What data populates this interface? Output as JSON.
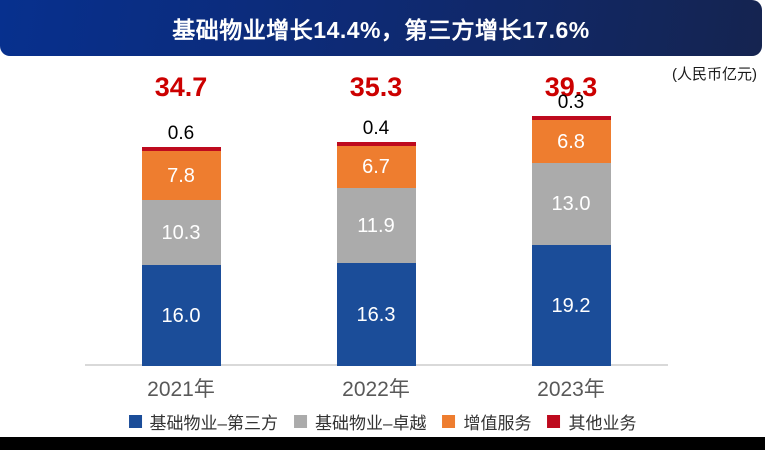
{
  "header": {
    "title": "基础物业增长14.4%，第三方增长17.6%",
    "gradient_left": "#07308E",
    "gradient_right": "#152450"
  },
  "chart_data": {
    "type": "bar",
    "stacked": true,
    "title": "基础物业增长14.4%，第三方增长17.6%",
    "unit_note": "(人民币亿元)",
    "categories": [
      "2021年",
      "2022年",
      "2023年"
    ],
    "series": [
      {
        "name": "基础物业–第三方",
        "color": "#1B4D99",
        "values": [
          16.0,
          16.3,
          19.2
        ],
        "labels": [
          "16.0",
          "16.3",
          "19.2"
        ],
        "label_placement": "inside"
      },
      {
        "name": "基础物业–卓越",
        "color": "#ABABAB",
        "values": [
          10.3,
          11.9,
          13.0
        ],
        "labels": [
          "10.3",
          "11.9",
          "13.0"
        ],
        "label_placement": "inside"
      },
      {
        "name": "增值服务",
        "color": "#EE7D2F",
        "values": [
          7.8,
          6.7,
          6.8
        ],
        "labels": [
          "7.8",
          "6.7",
          "6.8"
        ],
        "label_placement": "inside"
      },
      {
        "name": "其他业务",
        "color": "#BE0A1E",
        "values": [
          0.6,
          0.4,
          0.3
        ],
        "labels": [
          "0.6",
          "0.4",
          "0.3"
        ],
        "label_placement": "above"
      }
    ],
    "totals": {
      "labels": [
        "34.7",
        "35.3",
        "39.3"
      ],
      "color": "#CC0000"
    },
    "legend_position": "bottom",
    "axis": {
      "baseline_color": "#D9D9D9",
      "gridlines": false
    },
    "ylim": [
      0,
      40
    ]
  },
  "footer": {
    "bar_color": "#000000"
  }
}
